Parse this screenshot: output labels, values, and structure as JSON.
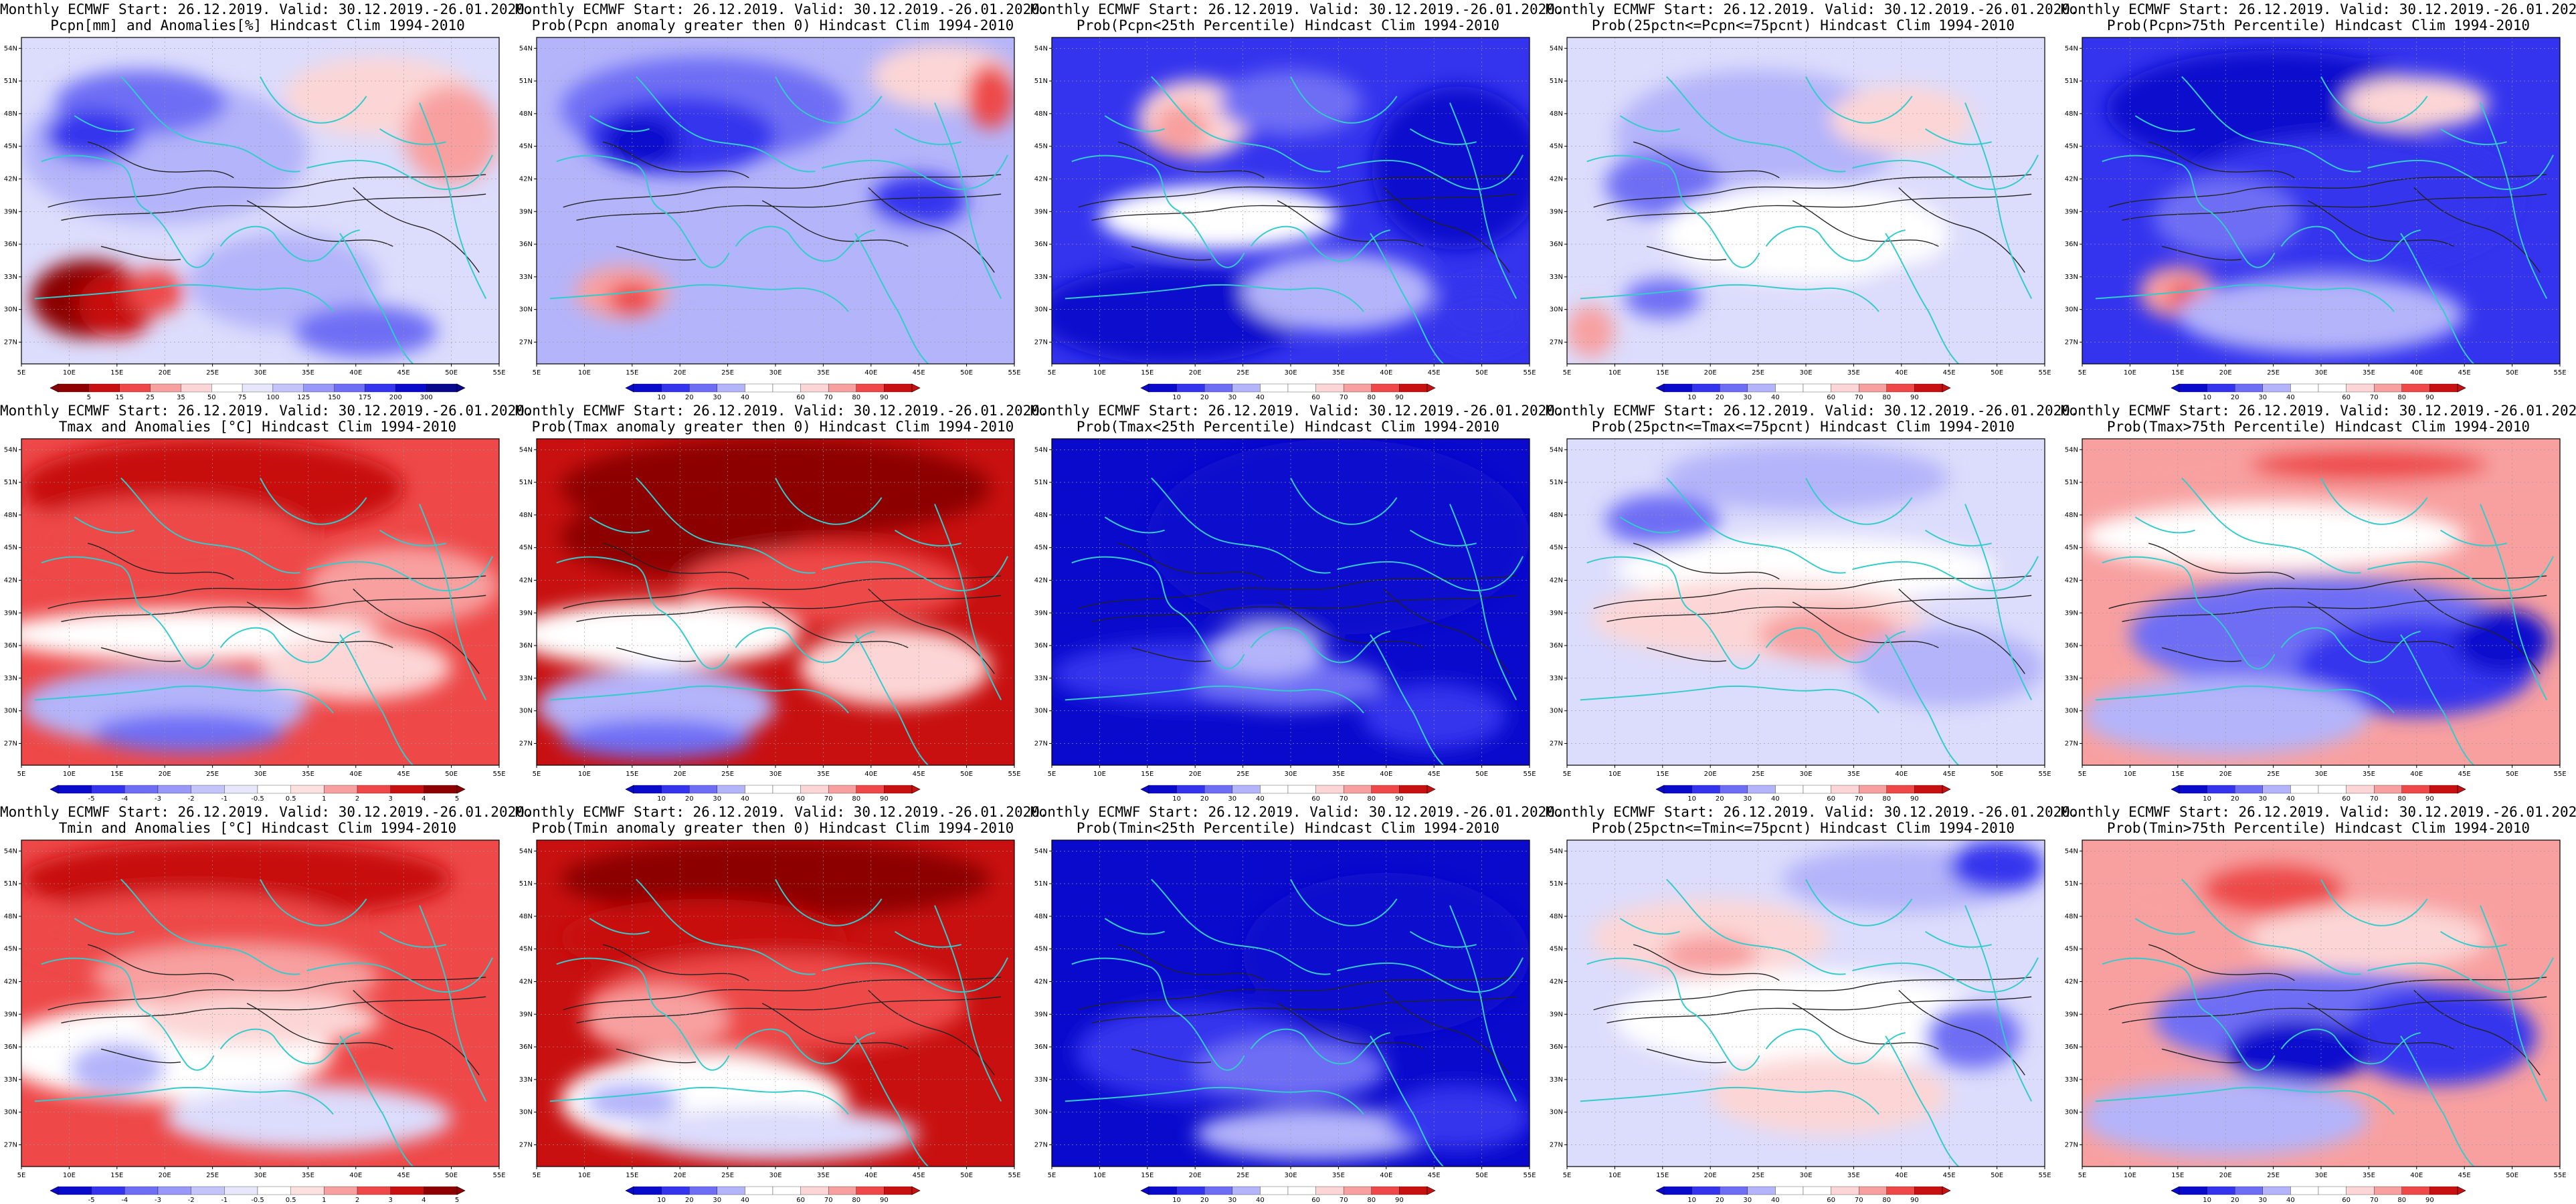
{
  "map_domain": {
    "lon_min": 5,
    "lon_max": 55,
    "lat_min": 25,
    "lat_max": 55
  },
  "lat_ticks": [
    "27N",
    "30N",
    "33N",
    "36N",
    "39N",
    "42N",
    "45N",
    "48N",
    "51N",
    "54N"
  ],
  "lat_values": [
    27,
    30,
    33,
    36,
    39,
    42,
    45,
    48,
    51,
    54
  ],
  "lon_ticks": [
    "5E",
    "10E",
    "15E",
    "20E",
    "25E",
    "30E",
    "35E",
    "40E",
    "45E",
    "50E",
    "55E"
  ],
  "lon_values": [
    5,
    10,
    15,
    20,
    25,
    30,
    35,
    40,
    45,
    50,
    55
  ],
  "title_line1": "Monthly ECMWF Start: 26.12.2019. Valid: 30.12.2019.-26.01.2020.",
  "scales": {
    "pcpn_anom": [
      "5",
      "15",
      "25",
      "35",
      "50",
      "75",
      "100",
      "125",
      "150",
      "175",
      "200",
      "300"
    ],
    "temp_anom": [
      "-5",
      "-4",
      "-3",
      "-2",
      "-1",
      "-0.5",
      "0.5",
      "1",
      "2",
      "3",
      "4",
      "5"
    ],
    "prob": [
      "10",
      "20",
      "30",
      "40",
      "60",
      "70",
      "80",
      "90"
    ]
  },
  "colors": {
    "deep_blue": "#0a0acd",
    "blue": "#3434ee",
    "mid_blue": "#6e6ef5",
    "light_blue": "#b4b4fa",
    "pale_blue": "#dcdcfc",
    "white": "#ffffff",
    "pale_red": "#fcd6d6",
    "light_red": "#f8a0a0",
    "red": "#ee4848",
    "dark_red": "#c81010",
    "deep_red": "#8c0000",
    "coast": "#33cccc",
    "contour": "#222222"
  },
  "panels": [
    {
      "id": "p0",
      "title2": "Pcpn[mm] and Anomalies[%] Hindcast Clim 1994-2010",
      "scale": "pcpn_anom",
      "base": "pale_blue"
    },
    {
      "id": "p1",
      "title2": "Prob(Pcpn anomaly greater then 0) Hindcast Clim 1994-2010",
      "scale": "prob",
      "base": "light_blue"
    },
    {
      "id": "p2",
      "title2": "Prob(Pcpn<25th Percentile) Hindcast Clim 1994-2010",
      "scale": "prob",
      "base": "blue"
    },
    {
      "id": "p3",
      "title2": "Prob(25pctn<=Pcpn<=75pcnt) Hindcast Clim 1994-2010",
      "scale": "prob",
      "base": "pale_blue"
    },
    {
      "id": "p4",
      "title2": "Prob(Pcpn>75th Percentile) Hindcast Clim 1994-2010",
      "scale": "prob",
      "base": "blue"
    },
    {
      "id": "p5",
      "title2": "Tmax and Anomalies [°C] Hindcast Clim 1994-2010",
      "scale": "temp_anom",
      "base": "red"
    },
    {
      "id": "p6",
      "title2": "Prob(Tmax anomaly greater then 0) Hindcast Clim 1994-2010",
      "scale": "prob",
      "base": "dark_red"
    },
    {
      "id": "p7",
      "title2": "Prob(Tmax<25th Percentile) Hindcast Clim 1994-2010",
      "scale": "prob",
      "base": "deep_blue"
    },
    {
      "id": "p8",
      "title2": "Prob(25pctn<=Tmax<=75pcnt) Hindcast Clim 1994-2010",
      "scale": "prob",
      "base": "pale_blue"
    },
    {
      "id": "p9",
      "title2": "Prob(Tmax>75th Percentile) Hindcast Clim 1994-2010",
      "scale": "prob",
      "base": "light_red"
    },
    {
      "id": "p10",
      "title2": "Tmin and Anomalies [°C] Hindcast Clim 1994-2010",
      "scale": "temp_anom",
      "base": "red"
    },
    {
      "id": "p11",
      "title2": "Prob(Tmin anomaly greater then 0) Hindcast Clim 1994-2010",
      "scale": "prob",
      "base": "dark_red"
    },
    {
      "id": "p12",
      "title2": "Prob(Tmin<25th Percentile) Hindcast Clim 1994-2010",
      "scale": "prob",
      "base": "deep_blue"
    },
    {
      "id": "p13",
      "title2": "Prob(25pctn<=Tmin<=75pcnt) Hindcast Clim 1994-2010",
      "scale": "prob",
      "base": "pale_blue"
    },
    {
      "id": "p14",
      "title2": "Prob(Tmin>75th Percentile) Hindcast Clim 1994-2010",
      "scale": "prob",
      "base": "light_red"
    }
  ]
}
